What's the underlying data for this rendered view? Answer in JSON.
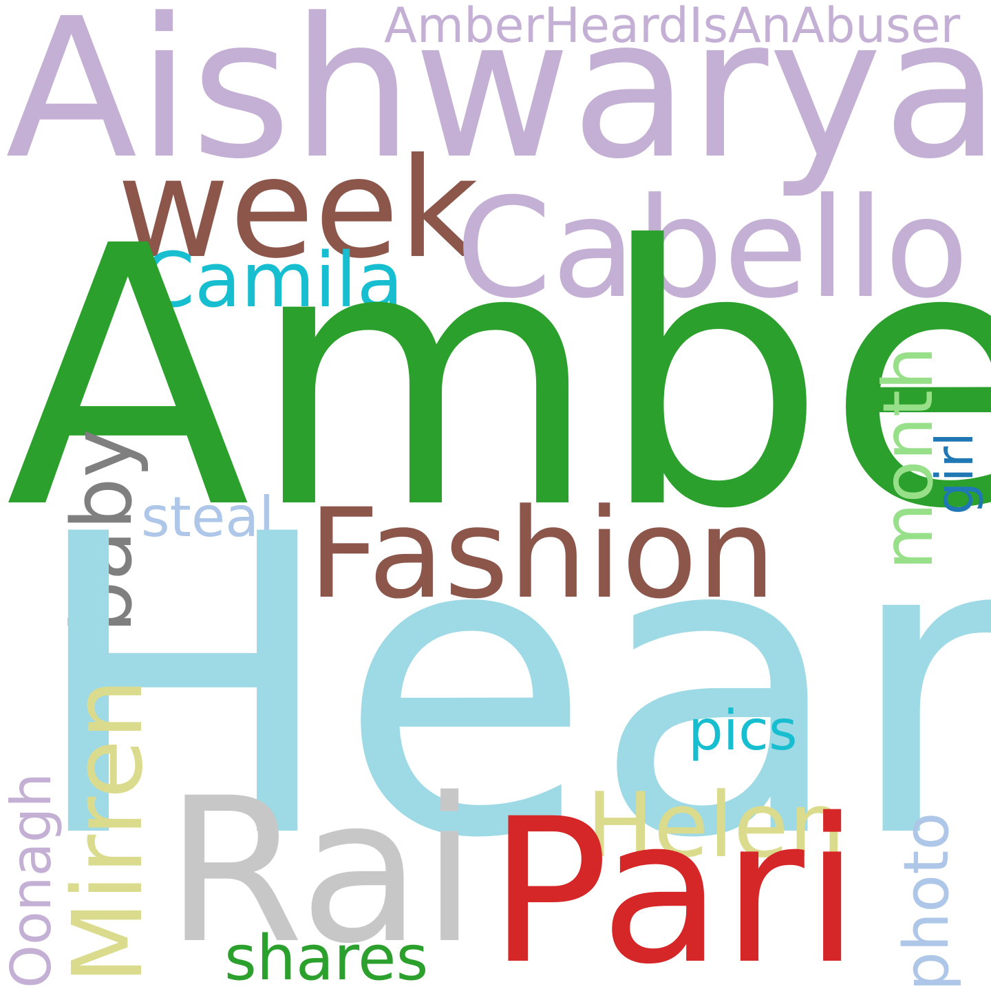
{
  "words": {
    "amber_heard_is_an_abuser": {
      "text": "AmberHeardIsAnAbuser",
      "color": "#c5b0d5",
      "orientation": "horizontal"
    },
    "aishwarya": {
      "text": "Aishwarya",
      "color": "#c5b0d5",
      "orientation": "horizontal"
    },
    "week": {
      "text": "week",
      "color": "#8c564b",
      "orientation": "horizontal"
    },
    "cabello": {
      "text": "Cabello",
      "color": "#c5b0d5",
      "orientation": "horizontal"
    },
    "camila": {
      "text": "Camila",
      "color": "#17becf",
      "orientation": "horizontal"
    },
    "amber": {
      "text": "Amber",
      "color": "#2ca02c",
      "orientation": "horizontal"
    },
    "month": {
      "text": "month",
      "color": "#98df8a",
      "orientation": "vertical"
    },
    "girl": {
      "text": "girl",
      "color": "#1f77b4",
      "orientation": "vertical"
    },
    "baby": {
      "text": "baby",
      "color": "#7f7f7f",
      "orientation": "vertical"
    },
    "steal": {
      "text": "steal",
      "color": "#aec7e8",
      "orientation": "horizontal"
    },
    "fashion": {
      "text": "Fashion",
      "color": "#8c564b",
      "orientation": "horizontal"
    },
    "heard": {
      "text": "Heard",
      "color": "#9edae5",
      "orientation": "horizontal"
    },
    "pics": {
      "text": "pics",
      "color": "#17becf",
      "orientation": "horizontal"
    },
    "mirren": {
      "text": "Mirren",
      "color": "#dbdb8d",
      "orientation": "vertical"
    },
    "oonagh": {
      "text": "Oonagh",
      "color": "#c5b0d5",
      "orientation": "vertical"
    },
    "rai": {
      "text": "Rai",
      "color": "#c7c7c7",
      "orientation": "horizontal"
    },
    "helen": {
      "text": "Helen",
      "color": "#dbdb8d",
      "orientation": "horizontal"
    },
    "pari": {
      "text": "Pari",
      "color": "#d62728",
      "orientation": "horizontal"
    },
    "photo": {
      "text": "photo",
      "color": "#aec7e8",
      "orientation": "vertical"
    },
    "shares": {
      "text": "shares",
      "color": "#2ca02c",
      "orientation": "horizontal"
    }
  }
}
